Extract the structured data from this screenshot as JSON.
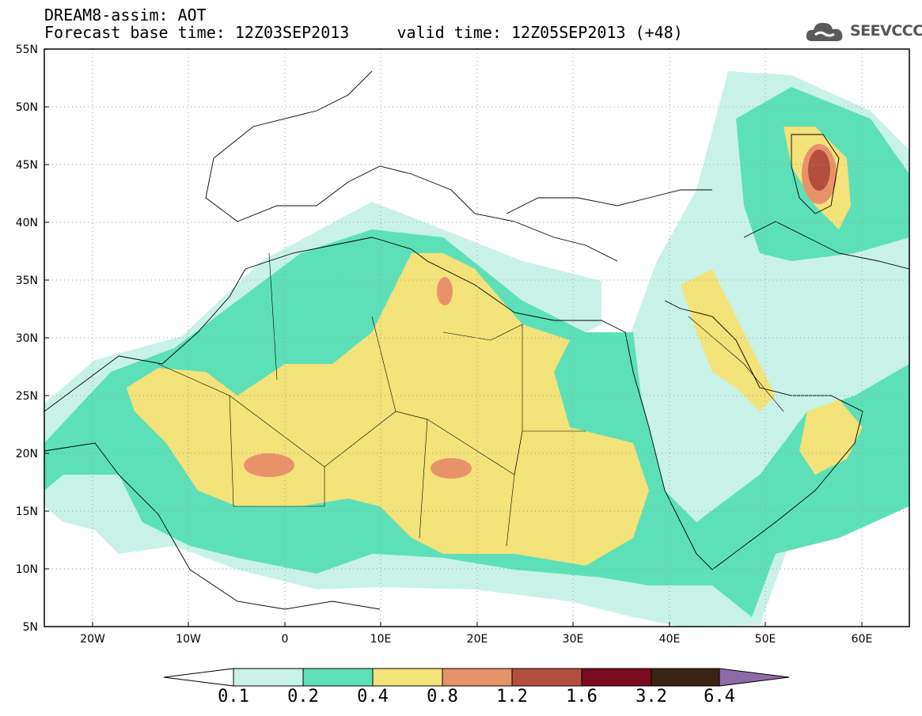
{
  "header": {
    "title_line1": "DREAM8-assim: AOT",
    "title_line2": "Forecast base time: 12Z03SEP2013     valid time: 12Z05SEP2013 (+48)",
    "logo_text": "SEEVCCC"
  },
  "map": {
    "variable": "AOT",
    "lon_range": [
      -25,
      65
    ],
    "lat_range": [
      5,
      55
    ],
    "lon_ticks": [
      "20W",
      "10W",
      "0",
      "10E",
      "20E",
      "30E",
      "40E",
      "50E",
      "60E"
    ],
    "lat_ticks": [
      "55N",
      "50N",
      "45N",
      "40N",
      "35N",
      "30N",
      "25N",
      "20N",
      "15N",
      "10N",
      "5N"
    ],
    "grid": "dotted",
    "coastlines": true,
    "country_borders": true
  },
  "colorbar": {
    "levels": [
      "0.1",
      "0.2",
      "0.4",
      "0.8",
      "1.2",
      "1.6",
      "3.2",
      "6.4"
    ],
    "colors": [
      "#ffffff",
      "#c8f2e8",
      "#5de0b8",
      "#f4e27a",
      "#e8926a",
      "#b44e3e",
      "#7a0a22",
      "#3a2413",
      "#8f6aab"
    ]
  }
}
